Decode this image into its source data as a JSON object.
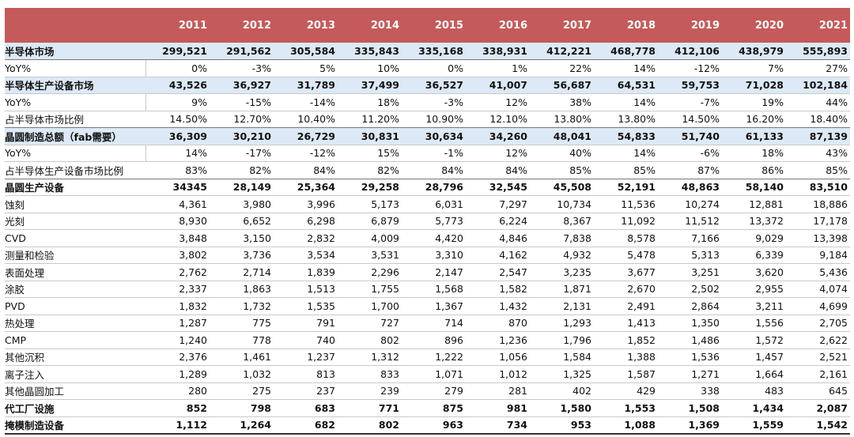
{
  "table": {
    "years": [
      "2011",
      "2012",
      "2013",
      "2014",
      "2015",
      "2016",
      "2017",
      "2018",
      "2019",
      "2020",
      "2021"
    ],
    "rows": [
      {
        "label": "半导体市场",
        "bold": true,
        "blue": true,
        "values": [
          "299,521",
          "291,562",
          "305,584",
          "335,843",
          "335,168",
          "338,931",
          "412,221",
          "468,778",
          "412,106",
          "438,979",
          "555,893"
        ]
      },
      {
        "label": "YoY%",
        "bold": false,
        "blue": false,
        "values": [
          "0%",
          "-3%",
          "5%",
          "10%",
          "0%",
          "1%",
          "22%",
          "14%",
          "-12%",
          "7%",
          "27%"
        ]
      },
      {
        "label": "半导体生产设备市场",
        "bold": true,
        "blue": true,
        "values": [
          "43,526",
          "36,927",
          "31,789",
          "37,499",
          "36,527",
          "41,007",
          "56,687",
          "64,531",
          "59,753",
          "71,028",
          "102,184"
        ]
      },
      {
        "label": "YoY%",
        "bold": false,
        "blue": false,
        "values": [
          "9%",
          "-15%",
          "-14%",
          "18%",
          "-3%",
          "12%",
          "38%",
          "14%",
          "-7%",
          "19%",
          "44%"
        ]
      },
      {
        "label": "占半导体市场比例",
        "bold": false,
        "blue": false,
        "values": [
          "14.50%",
          "12.70%",
          "10.40%",
          "11.20%",
          "10.90%",
          "12.10%",
          "13.80%",
          "13.80%",
          "14.50%",
          "16.20%",
          "18.40%"
        ]
      },
      {
        "label": "晶圆制造总额（fab需要）",
        "bold": true,
        "blue": true,
        "values": [
          "36,309",
          "30,210",
          "26,729",
          "30,831",
          "30,634",
          "34,260",
          "48,041",
          "54,833",
          "51,740",
          "61,133",
          "87,139"
        ]
      },
      {
        "label": "YoY%",
        "bold": false,
        "blue": false,
        "values": [
          "14%",
          "-17%",
          "-12%",
          "15%",
          "-1%",
          "12%",
          "40%",
          "14%",
          "-6%",
          "18%",
          "43%"
        ]
      },
      {
        "label": "占半导体生产设备市场比例",
        "bold": false,
        "blue": false,
        "values": [
          "83%",
          "82%",
          "84%",
          "82%",
          "84%",
          "84%",
          "85%",
          "85%",
          "87%",
          "86%",
          "85%"
        ]
      },
      {
        "label": "晶圆生产设备",
        "bold": true,
        "blue": false,
        "values": [
          "34345",
          "28,149",
          "25,364",
          "29,258",
          "28,796",
          "32,545",
          "45,508",
          "52,191",
          "48,863",
          "58,140",
          "83,510"
        ]
      },
      {
        "label": "蚀刻",
        "bold": false,
        "blue": false,
        "values": [
          "4,361",
          "3,980",
          "3,996",
          "5,173",
          "6,031",
          "7,297",
          "10,734",
          "11,536",
          "10,274",
          "12,881",
          "18,886"
        ]
      },
      {
        "label": "光刻",
        "bold": false,
        "blue": false,
        "values": [
          "8,930",
          "6,652",
          "6,298",
          "6,879",
          "5,773",
          "6,224",
          "8,367",
          "11,092",
          "11,512",
          "13,372",
          "17,178"
        ]
      },
      {
        "label": "CVD",
        "bold": false,
        "blue": false,
        "values": [
          "3,848",
          "3,150",
          "2,832",
          "4,009",
          "4,420",
          "4,846",
          "7,838",
          "8,578",
          "7,166",
          "9,029",
          "13,398"
        ]
      },
      {
        "label": "测量和检验",
        "bold": false,
        "blue": false,
        "values": [
          "3,802",
          "3,736",
          "3,534",
          "3,531",
          "3,310",
          "4,162",
          "4,932",
          "5,478",
          "5,313",
          "6,339",
          "9,184"
        ]
      },
      {
        "label": "表面处理",
        "bold": false,
        "blue": false,
        "values": [
          "2,762",
          "2,714",
          "1,839",
          "2,296",
          "2,147",
          "2,547",
          "3,235",
          "3,677",
          "3,251",
          "3,620",
          "5,436"
        ]
      },
      {
        "label": "涂胶",
        "bold": false,
        "blue": false,
        "values": [
          "2,337",
          "1,863",
          "1,513",
          "1,755",
          "1,568",
          "1,582",
          "1,871",
          "2,670",
          "2,502",
          "2,955",
          "4,074"
        ]
      },
      {
        "label": "PVD",
        "bold": false,
        "blue": false,
        "values": [
          "1,832",
          "1,732",
          "1,535",
          "1,700",
          "1,367",
          "1,432",
          "2,131",
          "2,491",
          "2,864",
          "3,211",
          "4,699"
        ]
      },
      {
        "label": "热处理",
        "bold": false,
        "blue": false,
        "values": [
          "1,287",
          "775",
          "791",
          "727",
          "714",
          "870",
          "1,293",
          "1,413",
          "1,350",
          "1,556",
          "2,705"
        ]
      },
      {
        "label": "CMP",
        "bold": false,
        "blue": false,
        "values": [
          "1,240",
          "778",
          "740",
          "802",
          "896",
          "1,236",
          "1,796",
          "1,852",
          "1,486",
          "1,572",
          "2,622"
        ]
      },
      {
        "label": "其他沉积",
        "bold": false,
        "blue": false,
        "values": [
          "2,376",
          "1,461",
          "1,237",
          "1,312",
          "1,222",
          "1,056",
          "1,584",
          "1,388",
          "1,536",
          "1,457",
          "2,521"
        ]
      },
      {
        "label": "离子注入",
        "bold": false,
        "blue": false,
        "values": [
          "1,289",
          "1,032",
          "813",
          "833",
          "1,071",
          "1,012",
          "1,325",
          "1,587",
          "1,271",
          "1,664",
          "2,161"
        ]
      },
      {
        "label": "其他晶圆加工",
        "bold": false,
        "blue": false,
        "values": [
          "280",
          "275",
          "237",
          "239",
          "279",
          "281",
          "402",
          "429",
          "338",
          "483",
          "645"
        ]
      },
      {
        "label": "代工厂设施",
        "bold": true,
        "blue": false,
        "values": [
          "852",
          "798",
          "683",
          "771",
          "875",
          "981",
          "1,580",
          "1,553",
          "1,508",
          "1,434",
          "2,087"
        ]
      },
      {
        "label": "掩模制造设备",
        "bold": true,
        "blue": false,
        "values": [
          "1,112",
          "1,264",
          "682",
          "802",
          "963",
          "734",
          "953",
          "1,088",
          "1,369",
          "1,559",
          "1,542"
        ]
      }
    ]
  },
  "colors": {
    "header_bg": "#c55a5a",
    "header_text": "#ffffff",
    "highlight_row_bg": "#dde9f6",
    "grid_line": "#c9c9c9"
  }
}
